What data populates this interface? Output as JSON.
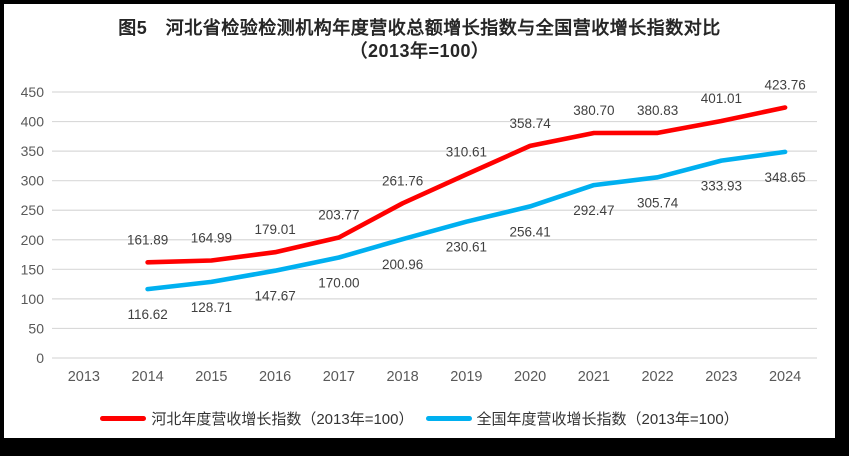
{
  "colors": {
    "frame_border": "#000000",
    "background": "#ffffff",
    "gridline": "#d9d9d9",
    "tick_label": "#595959",
    "data_label": "#404040",
    "title_text": "#262626",
    "series_hebei": "#ff0000",
    "series_national": "#00b0f0"
  },
  "chart_data": {
    "type": "line",
    "title": "图5　河北省检验检测机构年度营收总额增长指数与全国营收增长指数对比",
    "subtitle": "（2013年=100）",
    "categories": [
      "2013",
      "2014",
      "2015",
      "2016",
      "2017",
      "2018",
      "2019",
      "2020",
      "2021",
      "2022",
      "2023",
      "2024"
    ],
    "series": [
      {
        "id": "hebei",
        "name": "河北年度营收增长指数（2013年=100）",
        "color": "#ff0000",
        "label_position": "above",
        "values": [
          null,
          161.89,
          164.99,
          179.01,
          203.77,
          261.76,
          310.61,
          358.74,
          380.7,
          380.83,
          401.01,
          423.76
        ]
      },
      {
        "id": "national",
        "name": "全国年度营收增长指数（2013年=100）",
        "color": "#00b0f0",
        "label_position": "below",
        "values": [
          null,
          116.62,
          128.71,
          147.67,
          170.0,
          200.96,
          230.61,
          256.41,
          292.47,
          305.74,
          333.93,
          348.65
        ]
      }
    ],
    "ylim": [
      0,
      450
    ],
    "ytick_step": 50,
    "grid": true,
    "legend_position": "bottom",
    "xlabel": "",
    "ylabel": ""
  }
}
